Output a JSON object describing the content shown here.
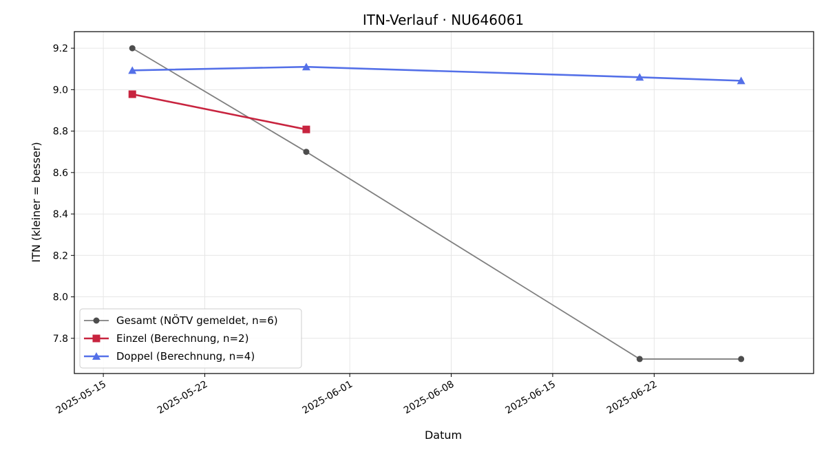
{
  "chart_data": {
    "type": "line",
    "title": "ITN-Verlauf · NU646061",
    "xlabel": "Datum",
    "ylabel": "ITN  (kleiner = besser)",
    "xlim": [
      "2025-05-13",
      "2025-07-03"
    ],
    "ylim": [
      7.63,
      9.28
    ],
    "x_ticks": [
      "2025-05-15",
      "2025-05-22",
      "2025-06-01",
      "2025-06-08",
      "2025-06-15",
      "2025-06-22"
    ],
    "y_ticks": [
      "7.8",
      "8.0",
      "8.2",
      "8.4",
      "8.6",
      "8.8",
      "9.0",
      "9.2"
    ],
    "grid": true,
    "legend_position": "lower-left",
    "series": [
      {
        "name": "Gesamt (NÖTV gemeldet, n=6)",
        "color": "#7f7f7f",
        "marker_color": "#4d4d4d",
        "marker": "circle",
        "points": [
          {
            "x": "2025-05-17",
            "y": 9.2
          },
          {
            "x": "2025-05-29",
            "y": 8.7
          },
          {
            "x": "2025-06-21",
            "y": 7.7
          },
          {
            "x": "2025-06-28",
            "y": 7.7
          }
        ]
      },
      {
        "name": "Einzel (Berechnung, n=2)",
        "color": "#c8243f",
        "marker_color": "#c8243f",
        "marker": "square",
        "points": [
          {
            "x": "2025-05-17",
            "y": 8.978
          },
          {
            "x": "2025-05-29",
            "y": 8.808
          }
        ]
      },
      {
        "name": "Doppel (Berechnung, n=4)",
        "color": "#5470e8",
        "marker_color": "#5470e8",
        "marker": "triangle",
        "points": [
          {
            "x": "2025-05-17",
            "y": 9.093
          },
          {
            "x": "2025-05-29",
            "y": 9.11
          },
          {
            "x": "2025-06-21",
            "y": 9.06
          },
          {
            "x": "2025-06-28",
            "y": 9.043
          }
        ]
      }
    ]
  }
}
